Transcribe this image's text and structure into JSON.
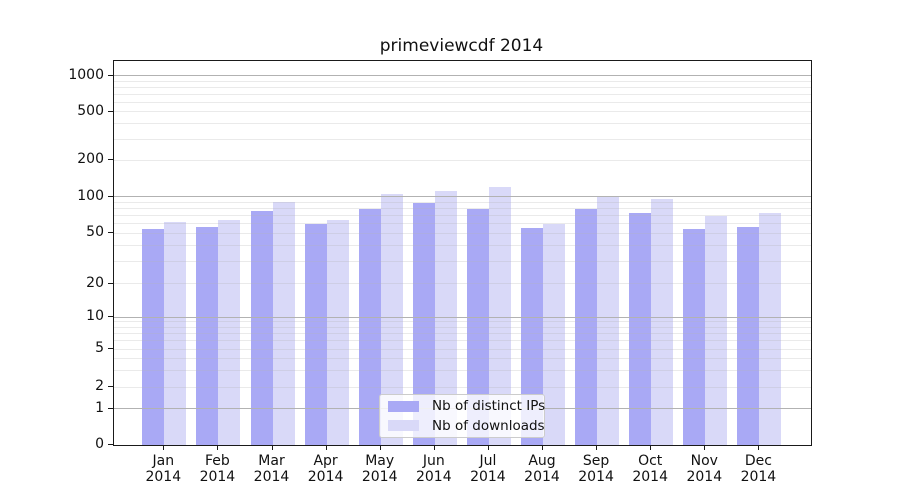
{
  "title": "primeviewcdf 2014",
  "colors": {
    "distinct_ips_bar": "#a9a9f5",
    "downloads_bar": "#d9d9f8",
    "grid_major": "#b2b2b2",
    "grid_minor": "#e9e9e9",
    "spine": "#1a1a1a",
    "legend_background": "#ffffff",
    "legend_border": "#cccccc"
  },
  "chart_data": {
    "type": "bar",
    "title": "primeviewcdf 2014",
    "categories": [
      "Jan 2014",
      "Feb 2014",
      "Mar 2014",
      "Apr 2014",
      "May 2014",
      "Jun 2014",
      "Jul 2014",
      "Aug 2014",
      "Sep 2014",
      "Oct 2014",
      "Nov 2014",
      "Dec 2014"
    ],
    "x_tick_months": [
      "Jan",
      "Feb",
      "Mar",
      "Apr",
      "May",
      "Jun",
      "Jul",
      "Aug",
      "Sep",
      "Oct",
      "Nov",
      "Dec"
    ],
    "x_tick_year": "2014",
    "series": [
      {
        "name": "Nb of distinct IPs",
        "color": "#a9a9f5",
        "values": [
          54,
          56,
          76,
          60,
          80,
          89,
          80,
          55,
          79,
          74,
          54,
          57
        ]
      },
      {
        "name": "Nb of downloads",
        "color": "#d9d9f8",
        "values": [
          62,
          64,
          91,
          65,
          105,
          111,
          121,
          60,
          101,
          96,
          69,
          74
        ]
      }
    ],
    "xlabel": "",
    "ylabel": "",
    "y_scale": "symlog",
    "y_ticks": [
      0,
      1,
      2,
      5,
      10,
      20,
      50,
      100,
      200,
      500,
      1000
    ],
    "y_minor_gridlines": [
      3,
      4,
      6,
      7,
      8,
      9,
      30,
      40,
      60,
      70,
      80,
      90,
      300,
      400,
      600,
      700,
      800,
      900
    ],
    "ylim": [
      0,
      1300
    ],
    "grid": "both",
    "grid_on_top": true,
    "legend_position": "lower center"
  }
}
